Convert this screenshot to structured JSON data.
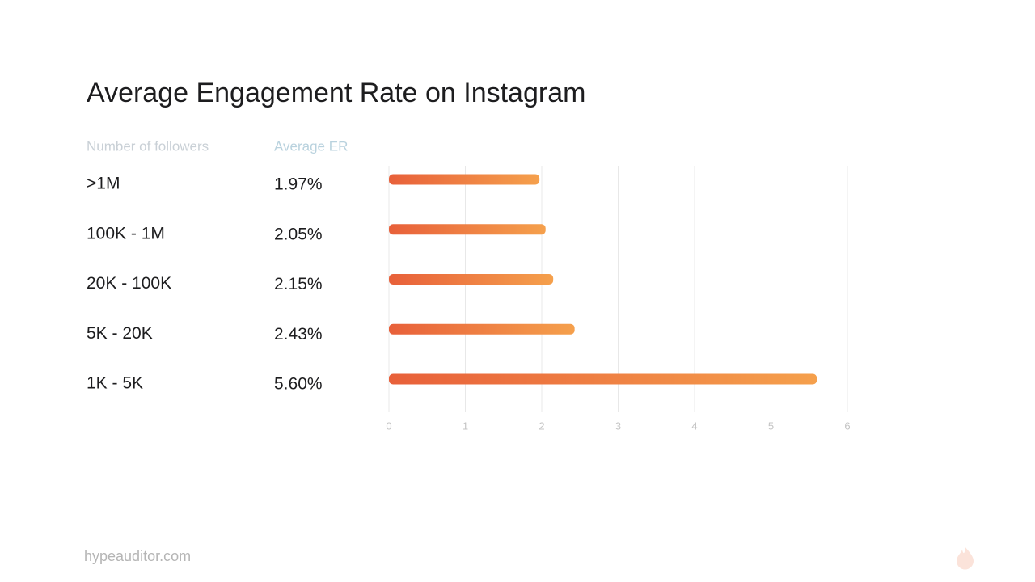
{
  "chart_data": {
    "type": "bar",
    "orientation": "horizontal",
    "title": "Average Engagement Rate on Instagram",
    "category_header": "Number of followers",
    "value_header": "Average ER",
    "categories": [
      ">1M",
      "100K - 1M",
      "20K - 100K",
      "5K - 20K",
      "1K - 5K"
    ],
    "values": [
      1.97,
      2.05,
      2.15,
      2.43,
      5.6
    ],
    "value_labels": [
      "1.97%",
      "2.05%",
      "2.15%",
      "2.43%",
      "5.60%"
    ],
    "gradient": [
      "#e8603a",
      "#f5a04c"
    ],
    "xlim": [
      0,
      6
    ],
    "xticks": [
      0,
      1,
      2,
      3,
      4,
      5,
      6
    ],
    "grid": true
  },
  "footer": "hypeauditor.com"
}
